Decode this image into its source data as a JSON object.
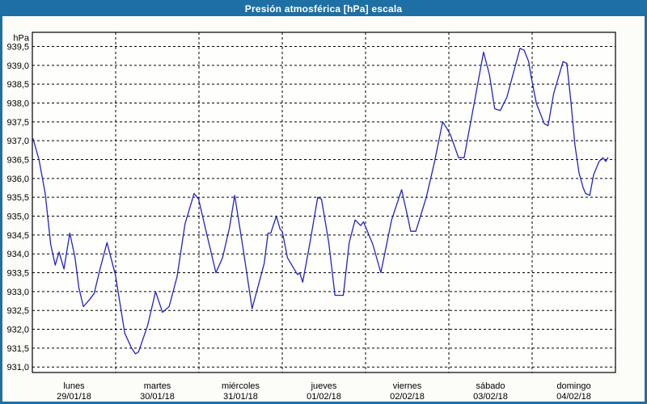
{
  "window": {
    "title": "Presión atmosférica [hPa] escala"
  },
  "colors": {
    "chrome_blue": "#1e6fa4",
    "title_text": "#ffffff",
    "background": "#fcfcf8",
    "plot_background": "#fefefc",
    "grid": "#000000",
    "frame": "#000000",
    "line": "#2323c8",
    "label_text": "#000000"
  },
  "chart_data": {
    "type": "line",
    "title": "Presión atmosférica [hPa] escala",
    "xlabel": "",
    "ylabel": "hPa",
    "ylim": [
      931.0,
      939.5
    ],
    "ytick_step": 0.5,
    "ytick_labels": [
      "939,5",
      "939,0",
      "938,5",
      "938,0",
      "937,5",
      "937,0",
      "936,5",
      "936,0",
      "935,5",
      "935,0",
      "934,5",
      "934,0",
      "933,5",
      "933,0",
      "932,5",
      "932,0",
      "931,5",
      "931,0"
    ],
    "grid": "dashed",
    "legend": "none",
    "x_hours_total": 168,
    "x_days": [
      {
        "name": "lunes",
        "date": "29/01/18"
      },
      {
        "name": "martes",
        "date": "30/01/18"
      },
      {
        "name": "miércoles",
        "date": "31/01/18"
      },
      {
        "name": "jueves",
        "date": "01/02/18"
      },
      {
        "name": "viernes",
        "date": "02/02/18"
      },
      {
        "name": "sábado",
        "date": "03/02/18"
      },
      {
        "name": "domingo",
        "date": "04/02/18"
      }
    ],
    "series": [
      {
        "name": "presion_hpa",
        "points": [
          [
            0.2,
            937.05
          ],
          [
            1.9,
            936.5
          ],
          [
            3.7,
            935.6
          ],
          [
            5.3,
            934.25
          ],
          [
            6.6,
            933.7
          ],
          [
            7.7,
            934.05
          ],
          [
            9.1,
            933.6
          ],
          [
            10.8,
            934.55
          ],
          [
            12.3,
            933.9
          ],
          [
            13.4,
            933.1
          ],
          [
            14.7,
            932.6
          ],
          [
            16.6,
            932.8
          ],
          [
            17.8,
            932.95
          ],
          [
            19.5,
            933.6
          ],
          [
            21.5,
            934.3
          ],
          [
            23.9,
            933.45
          ],
          [
            25.5,
            932.55
          ],
          [
            26.6,
            931.9
          ],
          [
            28.6,
            931.5
          ],
          [
            29.7,
            931.35
          ],
          [
            30.6,
            931.4
          ],
          [
            33.2,
            932.1
          ],
          [
            35.5,
            933.0
          ],
          [
            37.5,
            932.45
          ],
          [
            39.4,
            932.6
          ],
          [
            41.7,
            933.4
          ],
          [
            44.0,
            934.8
          ],
          [
            46.6,
            935.6
          ],
          [
            47.9,
            935.45
          ],
          [
            49.8,
            934.7
          ],
          [
            52.9,
            933.5
          ],
          [
            54.8,
            933.9
          ],
          [
            56.8,
            934.7
          ],
          [
            58.3,
            935.55
          ],
          [
            60.7,
            934.15
          ],
          [
            63.3,
            932.55
          ],
          [
            65.5,
            933.3
          ],
          [
            66.8,
            933.75
          ],
          [
            67.9,
            934.55
          ],
          [
            68.7,
            934.55
          ],
          [
            70.3,
            935.0
          ],
          [
            71.4,
            934.65
          ],
          [
            72.0,
            934.6
          ],
          [
            73.5,
            933.9
          ],
          [
            76.4,
            933.45
          ],
          [
            77.0,
            933.5
          ],
          [
            77.9,
            933.25
          ],
          [
            80.0,
            934.3
          ],
          [
            82.2,
            935.5
          ],
          [
            83.3,
            935.45
          ],
          [
            85.4,
            934.3
          ],
          [
            87.2,
            932.9
          ],
          [
            89.6,
            932.9
          ],
          [
            91.3,
            934.3
          ],
          [
            93.0,
            934.9
          ],
          [
            94.6,
            934.75
          ],
          [
            95.4,
            934.85
          ],
          [
            98.1,
            934.25
          ],
          [
            100.4,
            933.5
          ],
          [
            103.5,
            934.9
          ],
          [
            106.4,
            935.7
          ],
          [
            108.1,
            935.0
          ],
          [
            109.0,
            934.6
          ],
          [
            110.5,
            934.6
          ],
          [
            113.5,
            935.5
          ],
          [
            115.9,
            936.45
          ],
          [
            118.2,
            937.5
          ],
          [
            119.6,
            937.3
          ],
          [
            120.5,
            937.15
          ],
          [
            122.8,
            936.55
          ],
          [
            124.4,
            936.55
          ],
          [
            125.5,
            937.1
          ],
          [
            127.4,
            938.05
          ],
          [
            130.0,
            939.35
          ],
          [
            131.7,
            938.75
          ],
          [
            133.2,
            937.85
          ],
          [
            134.8,
            937.8
          ],
          [
            136.7,
            938.15
          ],
          [
            138.6,
            938.8
          ],
          [
            140.5,
            939.45
          ],
          [
            141.7,
            939.4
          ],
          [
            143.0,
            939.1
          ],
          [
            143.6,
            938.75
          ],
          [
            145.2,
            938.0
          ],
          [
            147.5,
            937.45
          ],
          [
            148.6,
            937.4
          ],
          [
            150.2,
            938.25
          ],
          [
            152.9,
            939.1
          ],
          [
            154.0,
            939.05
          ],
          [
            155.2,
            938.0
          ],
          [
            156.3,
            936.9
          ],
          [
            157.5,
            936.15
          ],
          [
            158.7,
            935.75
          ],
          [
            159.4,
            935.6
          ],
          [
            160.6,
            935.55
          ],
          [
            161.7,
            936.1
          ],
          [
            163.3,
            936.45
          ],
          [
            164.4,
            936.55
          ],
          [
            165.2,
            936.45
          ],
          [
            165.8,
            936.55
          ]
        ]
      }
    ]
  }
}
